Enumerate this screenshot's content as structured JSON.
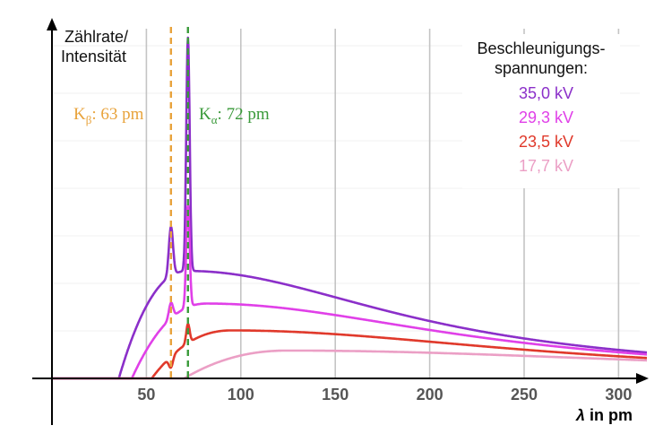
{
  "chart_data": {
    "type": "line",
    "ylabel_lines": [
      "Zählrate/",
      "Intensität"
    ],
    "xlabel_symbol": "λ",
    "xlabel_unit": " in pm",
    "xlim": [
      0,
      310
    ],
    "x_ticks": [
      50,
      100,
      150,
      200,
      250,
      300
    ],
    "grid": true,
    "legend": {
      "title_lines": [
        "Beschleunigungs-",
        "spannungen:"
      ],
      "placement": "top-right"
    },
    "annotations": [
      {
        "letter": "K",
        "sub": "β",
        "text": ": 63 pm",
        "x": 63,
        "color": "#e8a33c"
      },
      {
        "letter": "K",
        "sub": "α",
        "text": ": 72 pm",
        "x": 72,
        "color": "#3a9a3a"
      }
    ],
    "series": [
      {
        "name": "35,0 kV",
        "color": "#8b2fc9",
        "cutoff": 35.4,
        "cont_peak_x": 72,
        "cont_peak_y": 1.12,
        "kb_peak": 1.6,
        "ka_peak": 3.55
      },
      {
        "name": "29,3 kV",
        "color": "#e040e8",
        "cutoff": 42.3,
        "cont_peak_x": 82,
        "cont_peak_y": 0.78,
        "kb_peak": 0.92,
        "ka_peak": 1.85
      },
      {
        "name": "23,5 kV",
        "color": "#e0392b",
        "cutoff": 52.8,
        "cont_peak_x": 95,
        "cont_peak_y": 0.5,
        "kb_peak": 0.37,
        "ka_peak": 0.7
      },
      {
        "name": "17,7 kV",
        "color": "#eb9fc5",
        "cutoff": 70.0,
        "cont_peak_x": 125,
        "cont_peak_y": 0.29,
        "kb_peak": 0,
        "ka_peak": 0
      }
    ]
  }
}
